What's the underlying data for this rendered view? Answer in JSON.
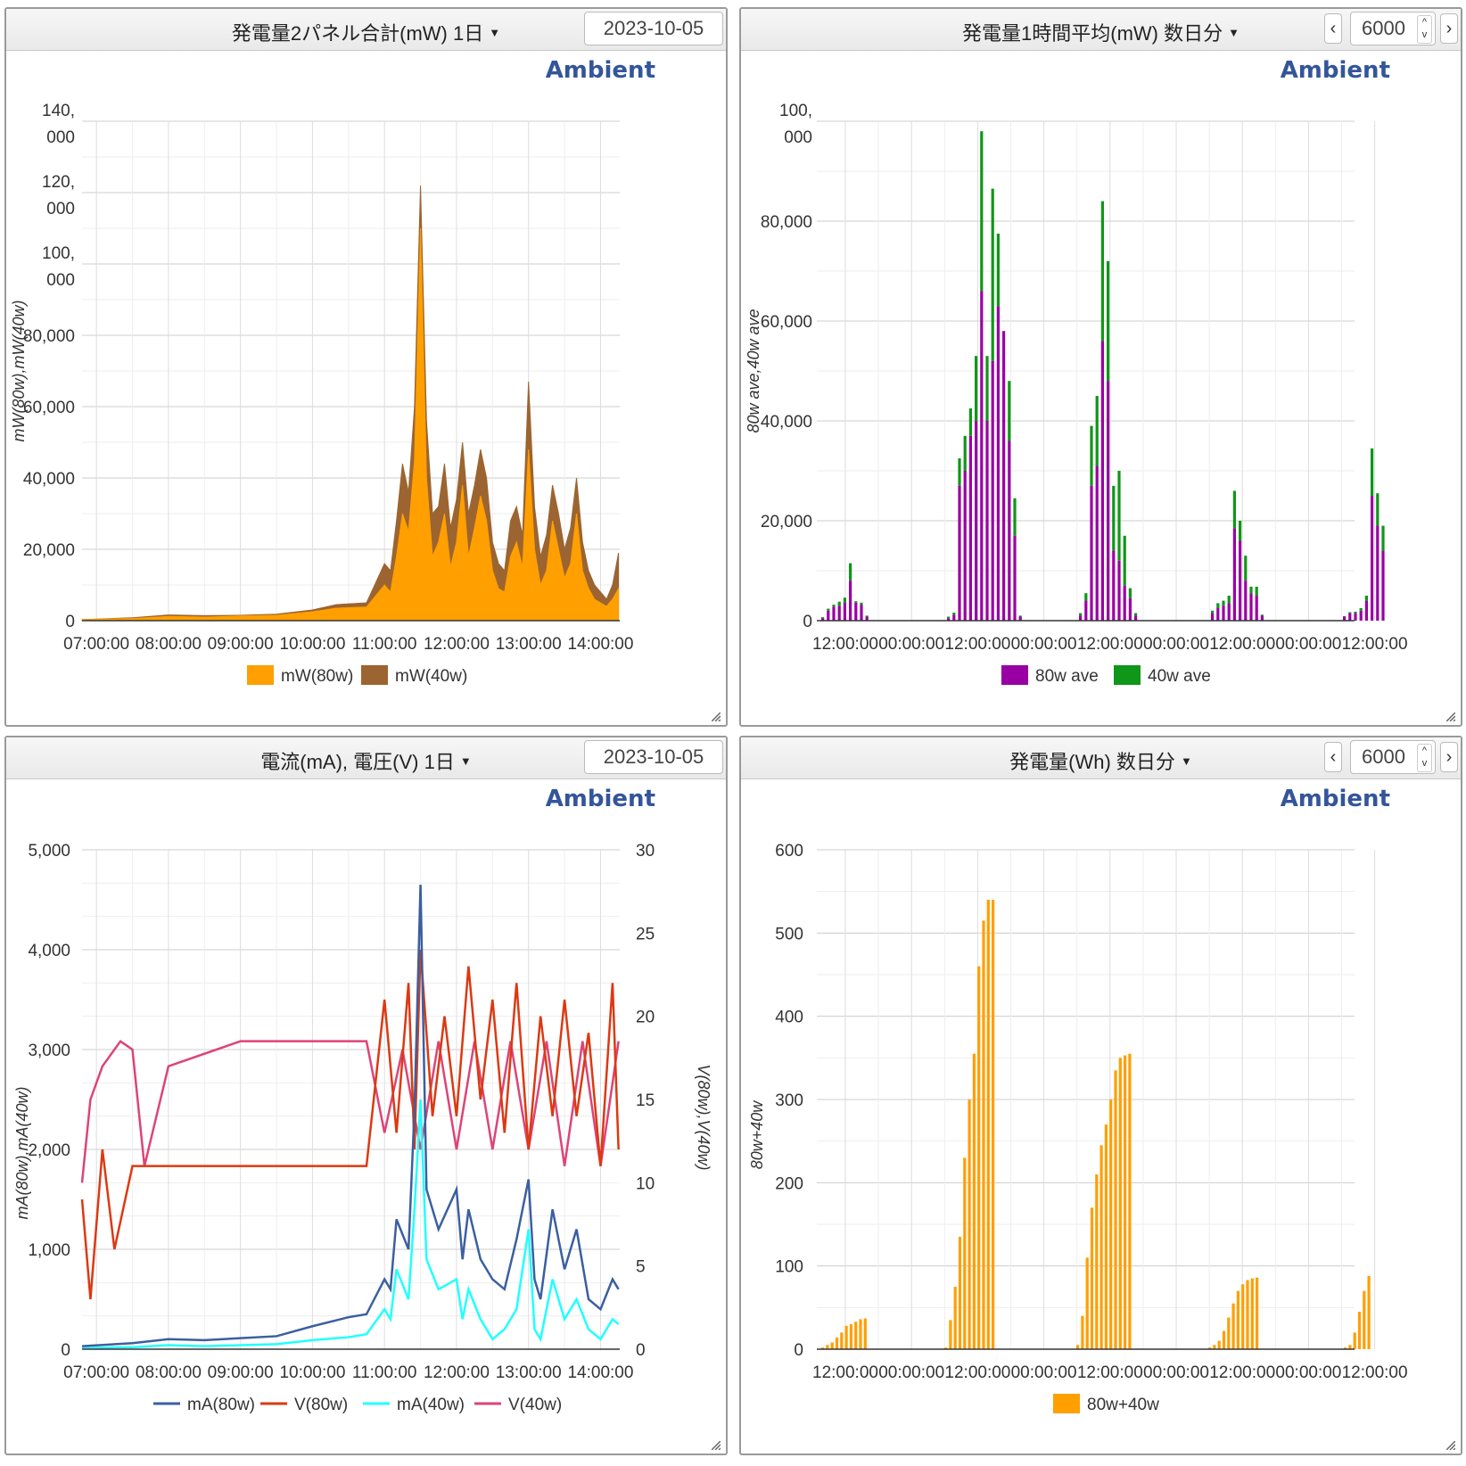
{
  "panels": [
    {
      "title": "発電量2パネル合計(mW) 1日",
      "date": "2023-10-05",
      "brand": "Ambient",
      "ylabel": "mW(80w),mW(40w)",
      "yticks": [
        [
          "0"
        ],
        [
          "20,000"
        ],
        [
          "40,000"
        ],
        [
          "60,000"
        ],
        [
          "80,000"
        ],
        [
          "100,",
          "000"
        ],
        [
          "120,",
          "000"
        ],
        [
          "140,",
          "000"
        ]
      ],
      "xticks": [
        "07:00:00",
        "08:00:00",
        "09:00:00",
        "10:00:00",
        "11:00:00",
        "12:00:00",
        "13:00:00",
        "14:00:00"
      ],
      "legend": [
        "mW(80w)",
        "mW(40w)"
      ]
    },
    {
      "title": "発電量1時間平均(mW) 数日分",
      "count": "6000",
      "brand": "Ambient",
      "ylabel": "80w ave,40w ave",
      "yticks": [
        [
          "0"
        ],
        [
          "20,000"
        ],
        [
          "40,000"
        ],
        [
          "60,000"
        ],
        [
          "80,000"
        ],
        [
          "100,",
          "000"
        ]
      ],
      "xticks": [
        "12:00:00",
        "00:00:00",
        "12:00:00",
        "00:00:00",
        "12:00:00",
        "00:00:00",
        "12:00:00",
        "00:00:00",
        "12:00:00"
      ],
      "legend": [
        "80w ave",
        "40w ave"
      ]
    },
    {
      "title": "電流(mA), 電圧(V) 1日",
      "date": "2023-10-05",
      "brand": "Ambient",
      "ylabel": "mA(80w),mA(40w)",
      "ylabel2": "V(80w),V(40w)",
      "yticks": [
        "0",
        "1,000",
        "2,000",
        "3,000",
        "4,000",
        "5,000"
      ],
      "yticks2": [
        "0",
        "5",
        "10",
        "15",
        "20",
        "25",
        "30"
      ],
      "xticks": [
        "07:00:00",
        "08:00:00",
        "09:00:00",
        "10:00:00",
        "11:00:00",
        "12:00:00",
        "13:00:00",
        "14:00:00"
      ],
      "legend": [
        "mA(80w)",
        "V(80w)",
        "mA(40w)",
        "V(40w)"
      ]
    },
    {
      "title": "発電量(Wh) 数日分",
      "count": "6000",
      "brand": "Ambient",
      "ylabel": "80w+40w",
      "yticks": [
        "0",
        "100",
        "200",
        "300",
        "400",
        "500",
        "600"
      ],
      "xticks": [
        "12:00:00",
        "00:00:00",
        "12:00:00",
        "00:00:00",
        "12:00:00",
        "00:00:00",
        "12:00:00",
        "00:00:00",
        "12:00:00"
      ],
      "legend": [
        "80w+40w"
      ]
    }
  ],
  "chart_data": [
    {
      "type": "area",
      "title": "発電量2パネル合計(mW) 1日",
      "ylabel": "mW(80w),mW(40w)",
      "ylim": [
        0,
        140000
      ],
      "x_range": [
        "06:48:00",
        "14:16:00"
      ],
      "colors": [
        "#ff9f00",
        "#9c6430"
      ],
      "series": [
        {
          "name": "mW(80w)",
          "x": [
            "06:48",
            "07:30",
            "08:00",
            "08:30",
            "09:00",
            "09:30",
            "10:00",
            "10:20",
            "10:45",
            "11:00",
            "11:05",
            "11:10",
            "11:15",
            "11:20",
            "11:25",
            "11:30",
            "11:35",
            "11:40",
            "11:45",
            "11:50",
            "11:55",
            "12:00",
            "12:05",
            "12:10",
            "12:15",
            "12:20",
            "12:25",
            "12:30",
            "12:35",
            "12:40",
            "12:45",
            "12:50",
            "12:55",
            "13:00",
            "13:05",
            "13:10",
            "13:15",
            "13:20",
            "13:25",
            "13:30",
            "13:35",
            "13:40",
            "13:45",
            "13:50",
            "13:55",
            "14:00",
            "14:05",
            "14:10",
            "14:15"
          ],
          "values": [
            300,
            600,
            1200,
            1000,
            1300,
            1500,
            2500,
            3500,
            3800,
            10000,
            8000,
            18000,
            30000,
            25000,
            45000,
            110000,
            40000,
            18000,
            22000,
            30000,
            15000,
            22000,
            38000,
            18000,
            26000,
            35000,
            28000,
            14000,
            9000,
            8000,
            18000,
            22000,
            15000,
            48000,
            20000,
            10000,
            14000,
            28000,
            20000,
            12000,
            16000,
            30000,
            14000,
            9000,
            6000,
            5000,
            4000,
            6000,
            9000
          ]
        },
        {
          "name": "mW(40w)",
          "x": [
            "06:48",
            "07:30",
            "08:00",
            "08:30",
            "09:00",
            "09:30",
            "10:00",
            "10:20",
            "10:45",
            "11:00",
            "11:05",
            "11:10",
            "11:15",
            "11:20",
            "11:25",
            "11:30",
            "11:35",
            "11:40",
            "11:45",
            "11:50",
            "11:55",
            "12:00",
            "12:05",
            "12:10",
            "12:15",
            "12:20",
            "12:25",
            "12:30",
            "12:35",
            "12:40",
            "12:45",
            "12:50",
            "12:55",
            "13:00",
            "13:05",
            "13:10",
            "13:15",
            "13:20",
            "13:25",
            "13:30",
            "13:35",
            "13:40",
            "13:45",
            "13:50",
            "13:55",
            "14:00",
            "14:05",
            "14:10",
            "14:15"
          ],
          "values": [
            300,
            800,
            1600,
            1400,
            1500,
            1800,
            3000,
            4500,
            5000,
            16000,
            14000,
            28000,
            44000,
            36000,
            60000,
            122000,
            56000,
            30000,
            32000,
            44000,
            26000,
            34000,
            50000,
            30000,
            38000,
            48000,
            40000,
            22000,
            16000,
            14000,
            28000,
            32000,
            24000,
            67000,
            32000,
            18000,
            24000,
            38000,
            30000,
            20000,
            26000,
            40000,
            22000,
            14000,
            10000,
            8000,
            6000,
            10000,
            19000
          ]
        }
      ]
    },
    {
      "type": "bar",
      "title": "発電量1時間平均(mW) 数日分",
      "ylabel": "80w ave,40w ave",
      "ylim": [
        0,
        100000
      ],
      "stacked": true,
      "colors": [
        "#9900a3",
        "#109618"
      ],
      "days": [
        {
          "series": {
            "80w ave": [
              500,
              2000,
              2800,
              3000,
              3600,
              8000,
              3600,
              3200,
              800
            ],
            "40w ave": [
              700,
              2400,
              3200,
              3800,
              4600,
              11500,
              3900,
              3600,
              1000
            ]
          }
        },
        {
          "series": {
            "80w ave": [
              500,
              1200,
              27000,
              30000,
              37000,
              40000,
              66000,
              40000,
              52000,
              63000,
              58000,
              36000,
              17000,
              800
            ],
            "40w ave": [
              800,
              1600,
              32500,
              37000,
              42500,
              53000,
              98000,
              53000,
              86500,
              77500,
              53000,
              48000,
              24500,
              1000
            ]
          }
        },
        {
          "series": {
            "80w ave": [
              1000,
              4000,
              27000,
              31000,
              56000,
              48000,
              14000,
              12000,
              7000,
              4500,
              1000
            ],
            "40w ave": [
              1500,
              5500,
              39000,
              45000,
              84000,
              72000,
              27000,
              30000,
              17000,
              6500,
              1500
            ]
          }
        },
        {
          "series": {
            "80w ave": [
              1500,
              2500,
              3000,
              3500,
              18500,
              16000,
              8000,
              5500,
              5000,
              1000
            ],
            "40w ave": [
              2000,
              3500,
              4000,
              5000,
              26000,
              20000,
              13000,
              6800,
              6800,
              1200
            ]
          }
        },
        {
          "series": {
            "80w ave": [
              800,
              1500,
              1500,
              2000,
              4000,
              25000,
              19000,
              14000
            ],
            "40w ave": [
              900,
              1700,
              1800,
              2500,
              5000,
              34500,
              25500,
              19000
            ]
          }
        }
      ]
    },
    {
      "type": "line",
      "title": "電流(mA), 電圧(V) 1日",
      "ylabel": "mA(80w),mA(40w)",
      "ylabel2": "V(80w),V(40w)",
      "ylim": [
        0,
        5000
      ],
      "ylim2": [
        0,
        30
      ],
      "colors": [
        "#3b5fa0",
        "#dc3912",
        "#22ffff",
        "#dd4477"
      ],
      "series": [
        {
          "name": "mA(80w)",
          "axis": "left",
          "x": [
            "06:48",
            "07:30",
            "08:00",
            "08:30",
            "09:00",
            "09:30",
            "10:00",
            "10:30",
            "10:45",
            "11:00",
            "11:05",
            "11:10",
            "11:20",
            "11:25",
            "11:30",
            "11:35",
            "11:45",
            "12:00",
            "12:05",
            "12:10",
            "12:20",
            "12:30",
            "12:40",
            "12:50",
            "13:00",
            "13:05",
            "13:10",
            "13:20",
            "13:30",
            "13:40",
            "13:50",
            "14:00",
            "14:10",
            "14:15"
          ],
          "values": [
            30,
            60,
            100,
            90,
            110,
            130,
            230,
            320,
            350,
            700,
            600,
            1300,
            1000,
            2400,
            4650,
            1600,
            1200,
            1600,
            900,
            1400,
            900,
            700,
            600,
            1100,
            1700,
            700,
            500,
            1400,
            800,
            1200,
            500,
            400,
            700,
            600
          ]
        },
        {
          "name": "V(80w)",
          "axis": "right",
          "x": [
            "06:48",
            "06:55",
            "07:05",
            "07:15",
            "07:30",
            "08:00",
            "09:00",
            "10:00",
            "10:45",
            "11:00",
            "11:10",
            "11:20",
            "11:25",
            "11:30",
            "11:40",
            "11:50",
            "12:00",
            "12:10",
            "12:20",
            "12:30",
            "12:40",
            "12:50",
            "13:00",
            "13:10",
            "13:20",
            "13:30",
            "13:40",
            "13:50",
            "14:00",
            "14:10",
            "14:15"
          ],
          "values": [
            9,
            3,
            12,
            6,
            11,
            11,
            11,
            11,
            11,
            21,
            13,
            22,
            12,
            24,
            14,
            20,
            14,
            23,
            15,
            21,
            13,
            22,
            12,
            20,
            14,
            21,
            14,
            19,
            11,
            22,
            12
          ]
        },
        {
          "name": "mA(40w)",
          "axis": "left",
          "x": [
            "06:48",
            "07:30",
            "08:00",
            "08:30",
            "09:00",
            "09:30",
            "10:00",
            "10:30",
            "10:45",
            "11:00",
            "11:05",
            "11:10",
            "11:20",
            "11:25",
            "11:30",
            "11:35",
            "11:45",
            "12:00",
            "12:05",
            "12:10",
            "12:20",
            "12:30",
            "12:40",
            "12:50",
            "13:00",
            "13:05",
            "13:10",
            "13:20",
            "13:30",
            "13:40",
            "13:50",
            "14:00",
            "14:10",
            "14:15"
          ],
          "values": [
            10,
            20,
            40,
            30,
            40,
            50,
            90,
            120,
            150,
            400,
            300,
            800,
            500,
            1400,
            2500,
            900,
            600,
            700,
            300,
            600,
            300,
            100,
            200,
            400,
            1200,
            200,
            100,
            700,
            300,
            500,
            200,
            100,
            300,
            250
          ]
        },
        {
          "name": "V(40w)",
          "axis": "right",
          "x": [
            "06:48",
            "06:55",
            "07:05",
            "07:20",
            "07:30",
            "07:40",
            "08:00",
            "09:00",
            "10:00",
            "10:45",
            "11:00",
            "11:15",
            "11:30",
            "11:45",
            "12:00",
            "12:15",
            "12:30",
            "12:45",
            "13:00",
            "13:15",
            "13:30",
            "13:45",
            "14:00",
            "14:15"
          ],
          "values": [
            10,
            15,
            17,
            18.5,
            18,
            11,
            17,
            18.5,
            18.5,
            18.5,
            13,
            18,
            12,
            18.5,
            12,
            18.5,
            12,
            18.5,
            12,
            18.5,
            11,
            18.5,
            11,
            18.5
          ]
        }
      ]
    },
    {
      "type": "bar",
      "title": "発電量(Wh) 数日分",
      "ylabel": "80w+40w",
      "ylim": [
        0,
        600
      ],
      "colors": [
        "#ff9f00"
      ],
      "days": [
        {
          "values": [
            2,
            5,
            8,
            14,
            20,
            28,
            30,
            33,
            36,
            37
          ]
        },
        {
          "values": [
            2,
            35,
            75,
            135,
            230,
            300,
            355,
            460,
            515,
            540,
            540
          ]
        },
        {
          "values": [
            5,
            40,
            110,
            170,
            210,
            245,
            270,
            300,
            335,
            350,
            353,
            355
          ]
        },
        {
          "values": [
            2,
            5,
            10,
            22,
            38,
            55,
            70,
            78,
            83,
            85,
            86
          ]
        },
        {
          "values": [
            2,
            5,
            20,
            45,
            70,
            88
          ]
        }
      ]
    }
  ]
}
